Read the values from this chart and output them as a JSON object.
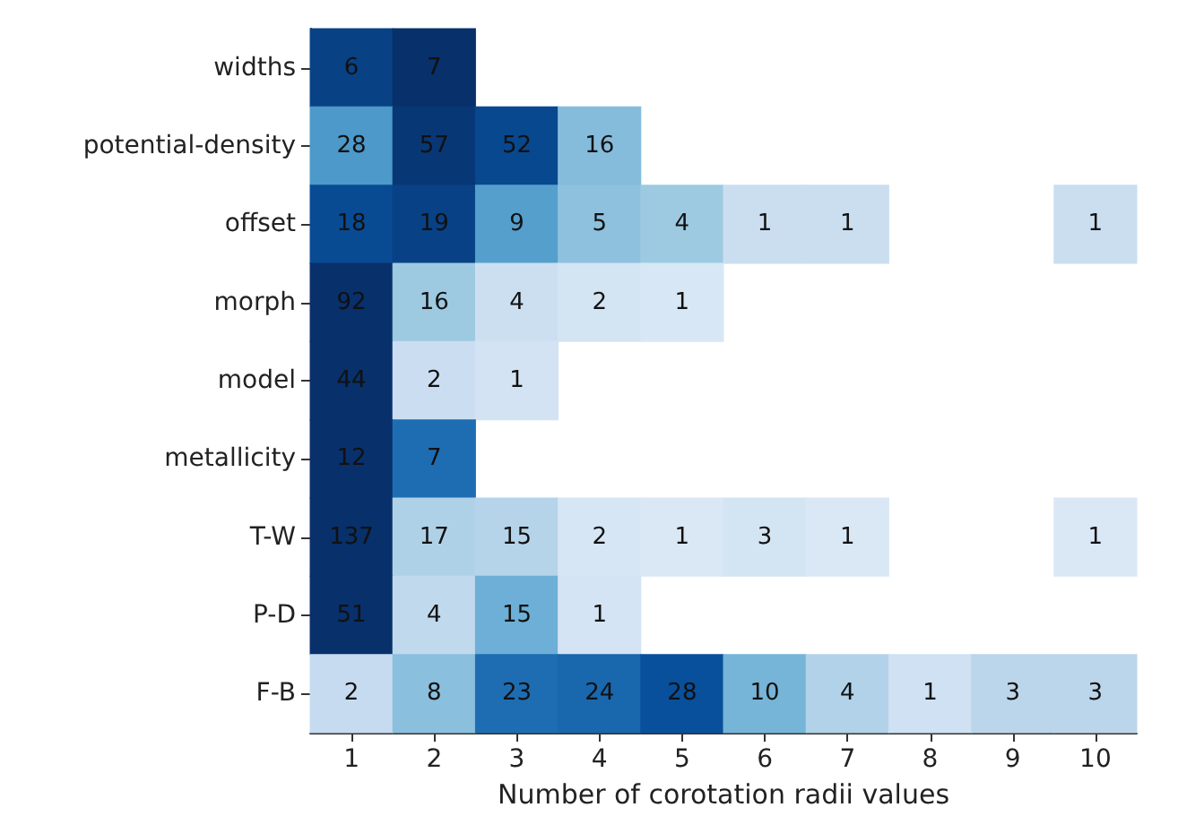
{
  "chart_data": {
    "type": "heatmap",
    "xlabel": "Number of corotation radii values",
    "categories": [
      "1",
      "2",
      "3",
      "4",
      "5",
      "6",
      "7",
      "8",
      "9",
      "10"
    ],
    "y_categories": [
      "widths",
      "potential-density",
      "offset",
      "morph",
      "model",
      "metallicity",
      "T-W",
      "P-D",
      "F-B"
    ],
    "cells": [
      [
        6,
        7,
        null,
        null,
        null,
        null,
        null,
        null,
        null,
        null
      ],
      [
        28,
        57,
        52,
        16,
        null,
        null,
        null,
        null,
        null,
        null
      ],
      [
        18,
        19,
        9,
        5,
        4,
        1,
        1,
        null,
        null,
        1
      ],
      [
        92,
        16,
        4,
        2,
        1,
        null,
        null,
        null,
        null,
        null
      ],
      [
        44,
        2,
        1,
        null,
        null,
        null,
        null,
        null,
        null,
        null
      ],
      [
        12,
        7,
        null,
        null,
        null,
        null,
        null,
        null,
        null,
        null
      ],
      [
        137,
        17,
        15,
        2,
        1,
        3,
        1,
        null,
        null,
        1
      ],
      [
        51,
        4,
        15,
        1,
        null,
        null,
        null,
        null,
        null,
        null
      ],
      [
        2,
        8,
        23,
        24,
        28,
        10,
        4,
        1,
        3,
        3
      ]
    ],
    "data_labels": true
  }
}
